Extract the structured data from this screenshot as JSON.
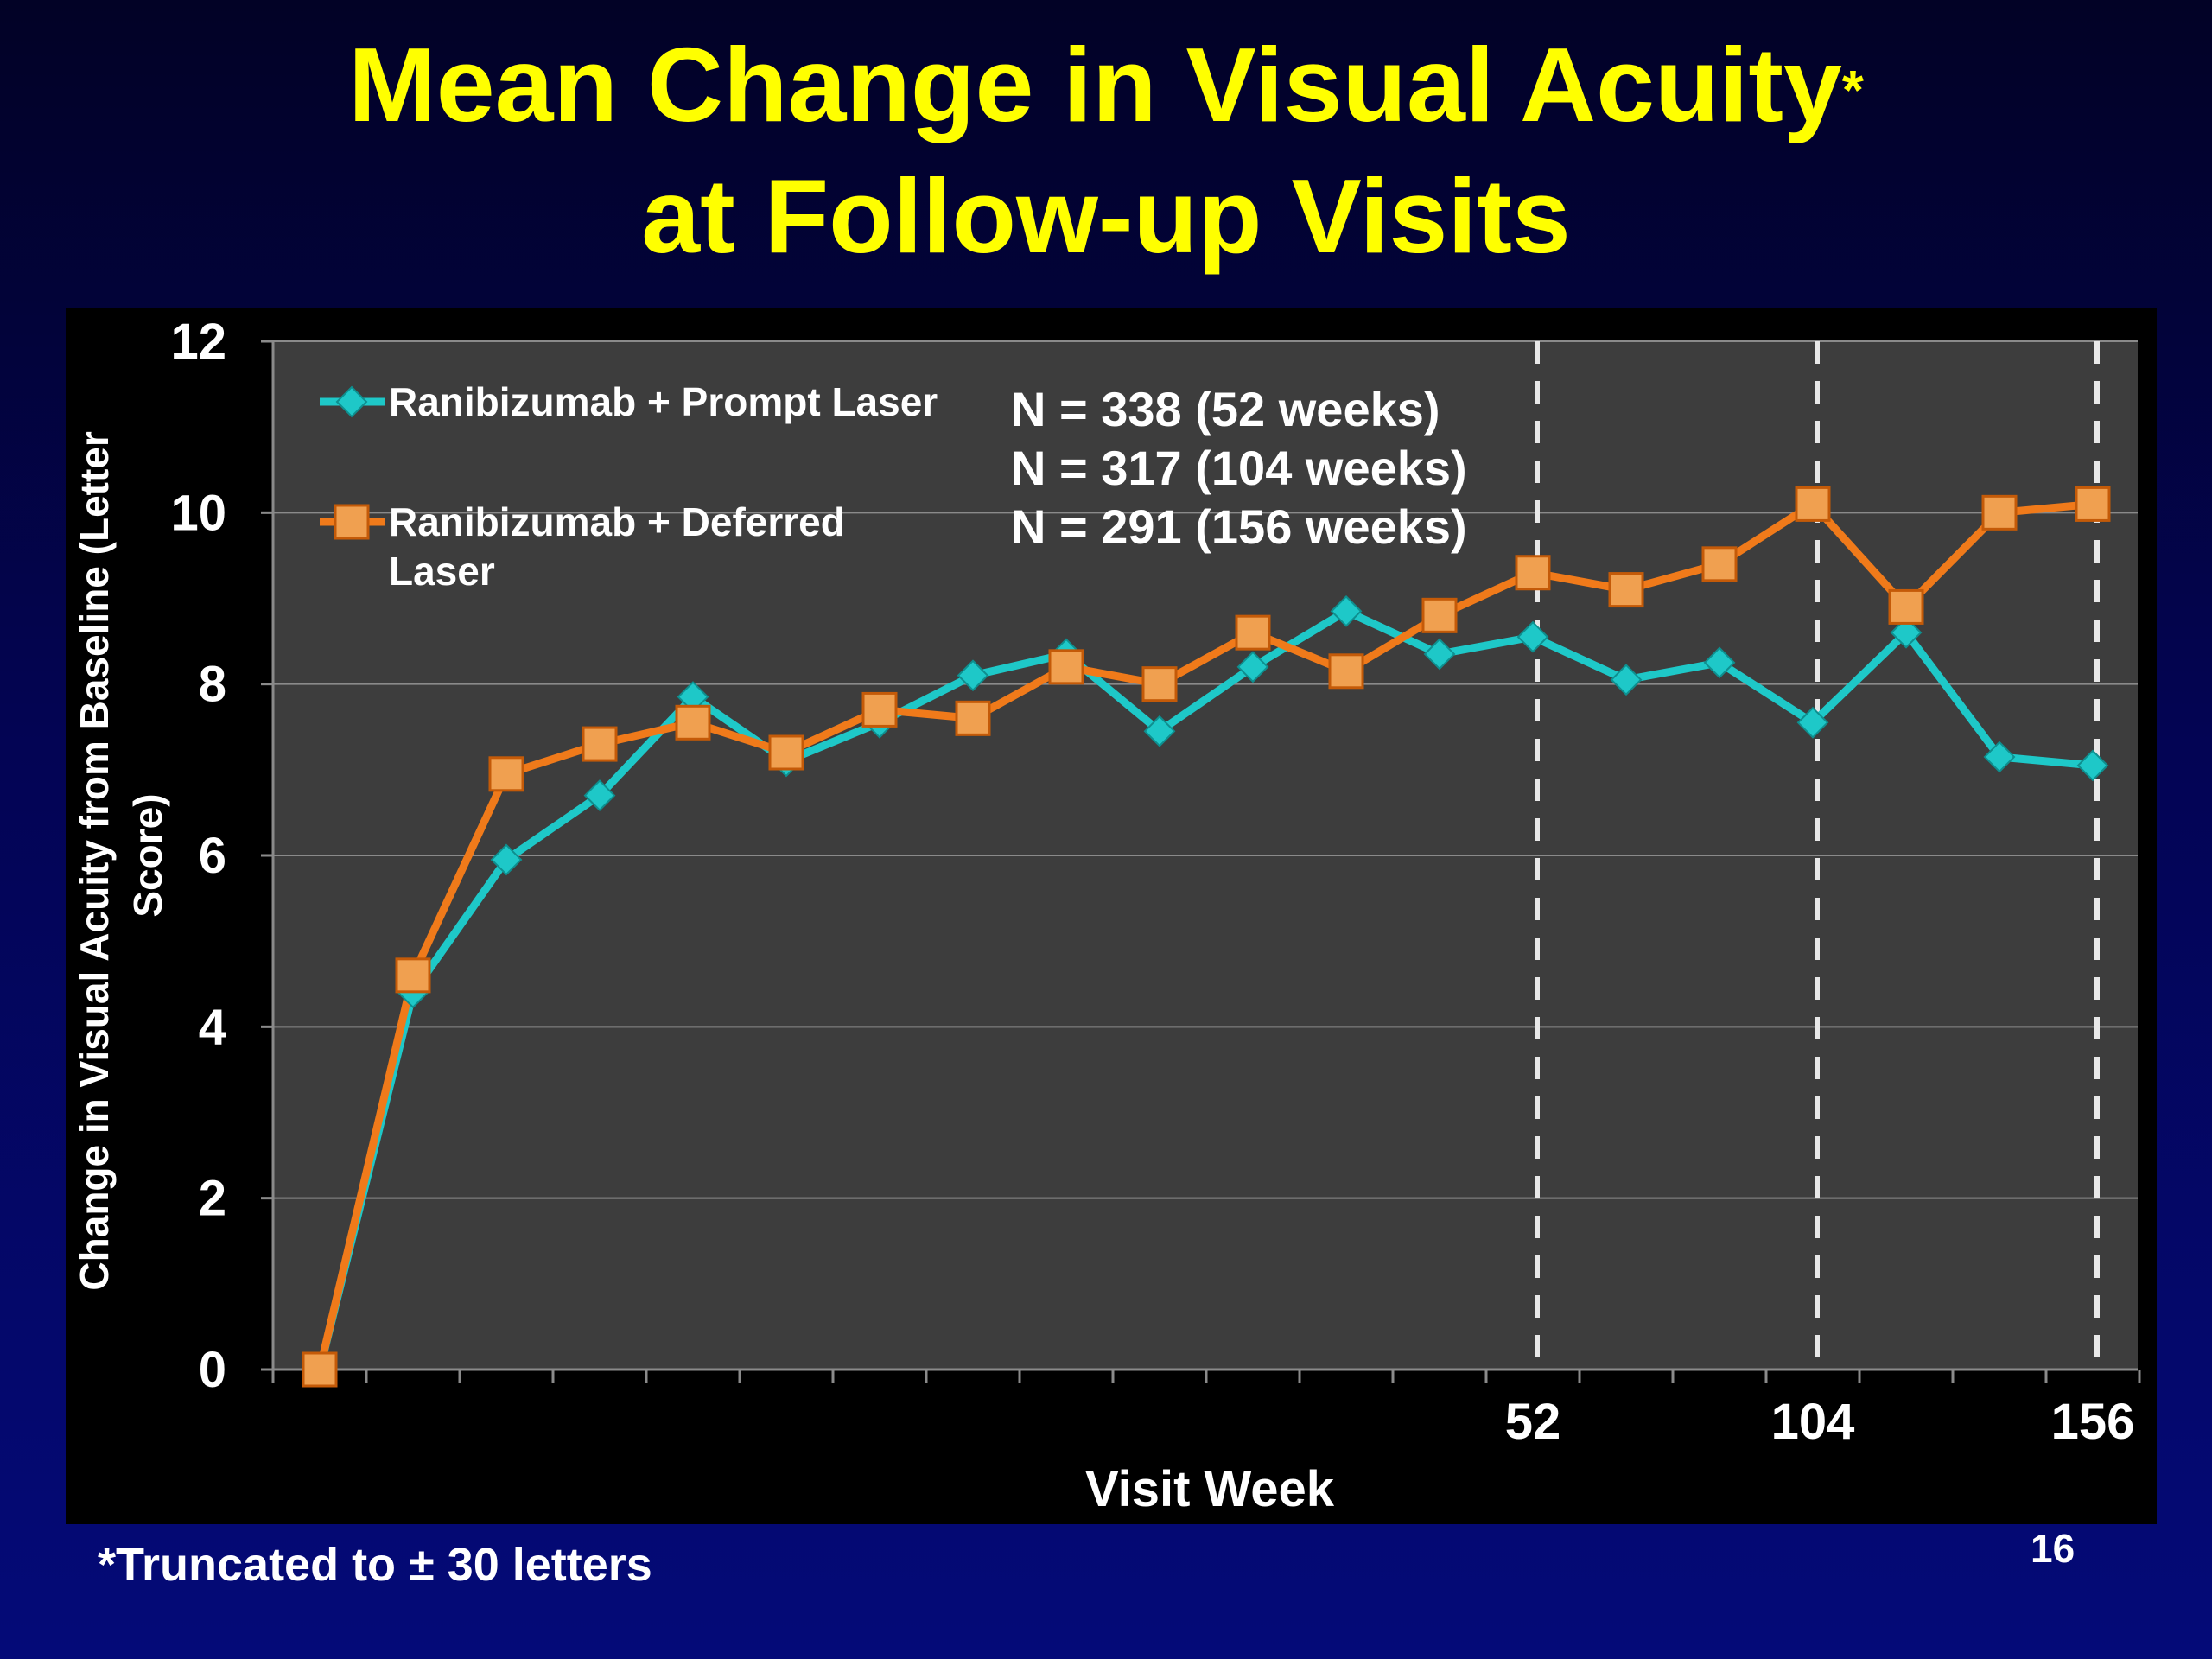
{
  "title": {
    "line1": "Mean Change in Visual Acuity",
    "asterisk": "*",
    "line2": "at Follow-up Visits"
  },
  "footnote": "*Truncated to ± 30 letters",
  "slide_number": "16",
  "annotation": [
    "N = 338 (52 weeks)",
    "N = 317 (104 weeks)",
    "N = 291 (156 weeks)"
  ],
  "colors": {
    "plot_bg": "#3d3d3d",
    "frame_bg": "#000000",
    "prompt": "#1ec8c8",
    "deferred": "#f07a1a",
    "deferred_marker": "#f0a050",
    "grid": "#8a8a8a"
  },
  "chart_data": {
    "type": "line",
    "title": "Mean Change in Visual Acuity* at Follow-up Visits",
    "xlabel": "Visit Week",
    "ylabel": "Change in Visual Acuity from Baseline (Letter Score)",
    "ylim": [
      0,
      12
    ],
    "yticks": [
      "0",
      "2",
      "4",
      "6",
      "8",
      "10",
      "12"
    ],
    "x_tick_labels": [
      {
        "index": 13,
        "label": "52"
      },
      {
        "index": 16,
        "label": "104"
      },
      {
        "index": 19,
        "label": "156"
      }
    ],
    "dashed_lines_at_index": [
      13,
      16,
      19
    ],
    "grid": true,
    "legend_position": "top-left",
    "series": [
      {
        "name": "Ranibizumab + Prompt Laser",
        "marker": "diamond",
        "values": [
          0,
          4.4,
          5.95,
          6.7,
          7.85,
          7.1,
          7.55,
          8.1,
          8.35,
          7.45,
          8.2,
          8.85,
          8.35,
          8.55,
          8.05,
          8.25,
          7.55,
          8.6,
          7.15,
          7.05
        ]
      },
      {
        "name": "Ranibizumab + Deferred Laser",
        "marker": "square",
        "values": [
          0,
          4.6,
          6.95,
          7.3,
          7.55,
          7.2,
          7.7,
          7.6,
          8.2,
          8.0,
          8.6,
          8.15,
          8.8,
          9.3,
          9.1,
          9.4,
          10.1,
          8.9,
          10.0,
          10.1
        ]
      }
    ]
  }
}
